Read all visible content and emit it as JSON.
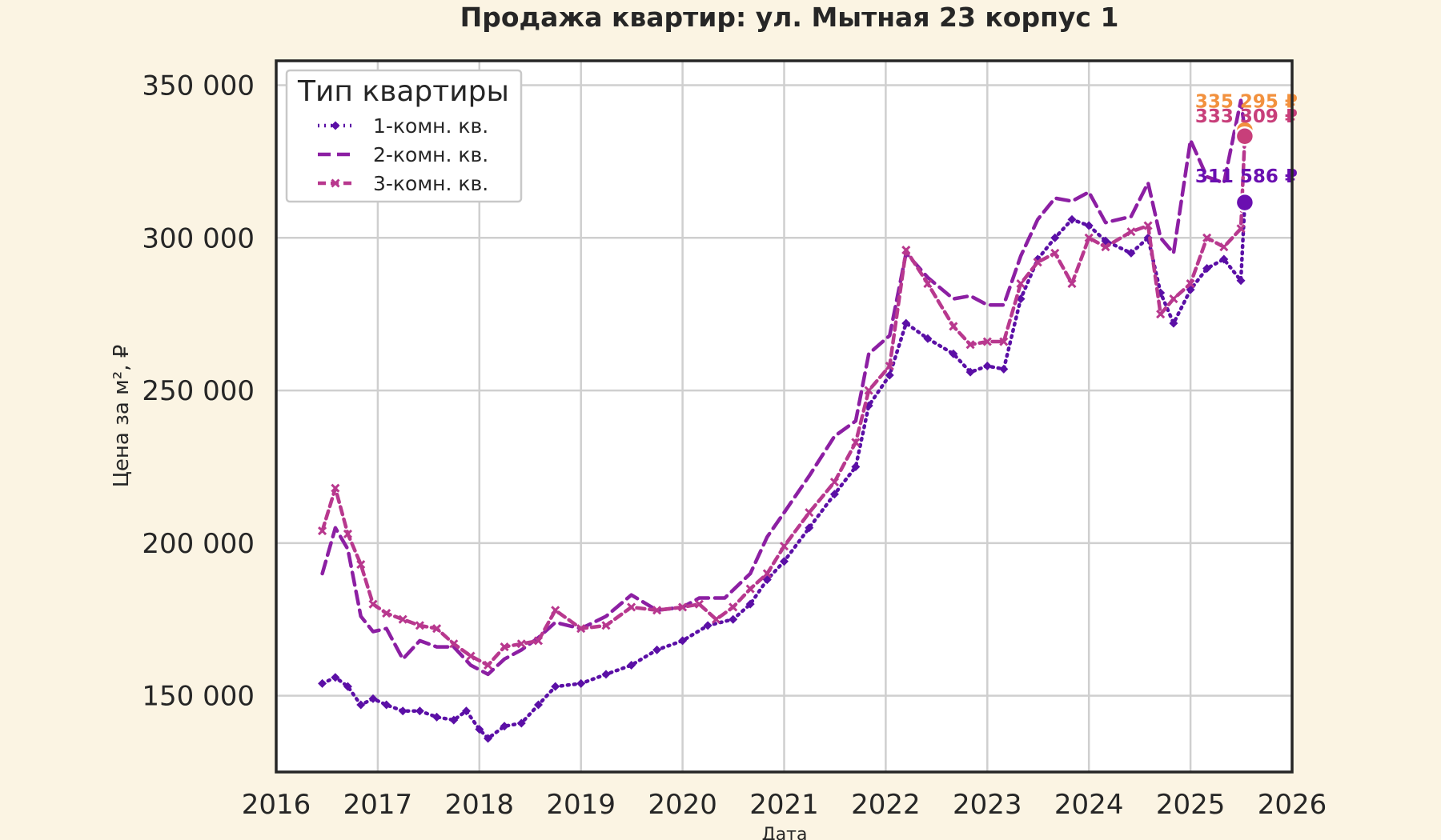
{
  "chart_data": {
    "type": "line",
    "title": "Продажа квартир: ул. Мытная 23 корпус 1",
    "xlabel": "Дата",
    "ylabel": "Цена за м², ₽",
    "xlim": [
      "2016-01-01",
      "2026-01-01"
    ],
    "ylim": [
      125000,
      358000
    ],
    "x_ticks": [
      "2016",
      "2017",
      "2018",
      "2019",
      "2020",
      "2021",
      "2022",
      "2023",
      "2024",
      "2025",
      "2026"
    ],
    "y_ticks": [
      150000,
      200000,
      250000,
      300000,
      350000
    ],
    "y_tick_labels": [
      "150 000",
      "200 000",
      "250 000",
      "300 000",
      "350 000"
    ],
    "grid": true,
    "legend": {
      "title": "Тип квартиры",
      "placement": "top-left"
    },
    "series": [
      {
        "name": "1-комн. кв.",
        "color": "#5b0fa6",
        "style": "dotted-diamond",
        "points": [
          [
            "2016-06-15",
            154000
          ],
          [
            "2016-08-01",
            156000
          ],
          [
            "2016-09-15",
            153000
          ],
          [
            "2016-11-01",
            147000
          ],
          [
            "2016-12-15",
            149000
          ],
          [
            "2017-02-01",
            147000
          ],
          [
            "2017-04-01",
            145000
          ],
          [
            "2017-06-01",
            145000
          ],
          [
            "2017-08-01",
            143000
          ],
          [
            "2017-10-01",
            142000
          ],
          [
            "2017-11-15",
            145000
          ],
          [
            "2018-01-01",
            139000
          ],
          [
            "2018-02-01",
            136000
          ],
          [
            "2018-04-01",
            140000
          ],
          [
            "2018-06-01",
            141000
          ],
          [
            "2018-08-01",
            147000
          ],
          [
            "2018-10-01",
            153000
          ],
          [
            "2019-01-01",
            154000
          ],
          [
            "2019-04-01",
            157000
          ],
          [
            "2019-07-01",
            160000
          ],
          [
            "2019-10-01",
            165000
          ],
          [
            "2020-01-01",
            168000
          ],
          [
            "2020-04-01",
            173000
          ],
          [
            "2020-07-01",
            175000
          ],
          [
            "2020-09-01",
            180000
          ],
          [
            "2020-11-01",
            188000
          ],
          [
            "2021-01-01",
            194000
          ],
          [
            "2021-04-01",
            205000
          ],
          [
            "2021-07-01",
            216000
          ],
          [
            "2021-09-15",
            225000
          ],
          [
            "2021-11-01",
            245000
          ],
          [
            "2022-01-15",
            255000
          ],
          [
            "2022-03-15",
            272000
          ],
          [
            "2022-06-01",
            267000
          ],
          [
            "2022-09-01",
            262000
          ],
          [
            "2022-11-01",
            256000
          ],
          [
            "2023-01-01",
            258000
          ],
          [
            "2023-03-01",
            257000
          ],
          [
            "2023-05-01",
            280000
          ],
          [
            "2023-07-01",
            293000
          ],
          [
            "2023-09-01",
            300000
          ],
          [
            "2023-11-01",
            306000
          ],
          [
            "2024-01-01",
            304000
          ],
          [
            "2024-03-01",
            299000
          ],
          [
            "2024-06-01",
            295000
          ],
          [
            "2024-08-01",
            300000
          ],
          [
            "2024-09-15",
            282000
          ],
          [
            "2024-11-01",
            272000
          ],
          [
            "2025-01-01",
            283000
          ],
          [
            "2025-03-01",
            290000
          ],
          [
            "2025-05-01",
            293000
          ],
          [
            "2025-07-01",
            286000
          ],
          [
            "2025-07-15",
            311586
          ]
        ]
      },
      {
        "name": "2-комн. кв.",
        "color": "#8c1fa3",
        "style": "dashed",
        "points": [
          [
            "2016-06-15",
            190000
          ],
          [
            "2016-08-01",
            205000
          ],
          [
            "2016-09-15",
            198000
          ],
          [
            "2016-11-01",
            176000
          ],
          [
            "2016-12-15",
            171000
          ],
          [
            "2017-02-01",
            172000
          ],
          [
            "2017-04-01",
            162000
          ],
          [
            "2017-06-01",
            168000
          ],
          [
            "2017-08-01",
            166000
          ],
          [
            "2017-10-01",
            166000
          ],
          [
            "2017-12-01",
            160000
          ],
          [
            "2018-02-01",
            157000
          ],
          [
            "2018-04-01",
            162000
          ],
          [
            "2018-06-01",
            165000
          ],
          [
            "2018-08-01",
            169000
          ],
          [
            "2018-10-01",
            174000
          ],
          [
            "2019-01-01",
            172000
          ],
          [
            "2019-04-01",
            176000
          ],
          [
            "2019-07-01",
            183000
          ],
          [
            "2019-10-01",
            178000
          ],
          [
            "2020-01-01",
            179000
          ],
          [
            "2020-03-01",
            182000
          ],
          [
            "2020-06-01",
            182000
          ],
          [
            "2020-09-01",
            190000
          ],
          [
            "2020-11-01",
            202000
          ],
          [
            "2021-01-01",
            210000
          ],
          [
            "2021-04-01",
            222000
          ],
          [
            "2021-07-01",
            235000
          ],
          [
            "2021-09-15",
            240000
          ],
          [
            "2021-11-01",
            262000
          ],
          [
            "2022-01-15",
            268000
          ],
          [
            "2022-03-15",
            295000
          ],
          [
            "2022-06-01",
            287000
          ],
          [
            "2022-09-01",
            280000
          ],
          [
            "2022-11-01",
            281000
          ],
          [
            "2023-01-01",
            278000
          ],
          [
            "2023-03-01",
            278000
          ],
          [
            "2023-05-01",
            294000
          ],
          [
            "2023-07-01",
            306000
          ],
          [
            "2023-09-01",
            313000
          ],
          [
            "2023-11-01",
            312000
          ],
          [
            "2024-01-01",
            315000
          ],
          [
            "2024-03-01",
            305000
          ],
          [
            "2024-06-01",
            307000
          ],
          [
            "2024-08-01",
            318000
          ],
          [
            "2024-09-15",
            300000
          ],
          [
            "2024-11-01",
            295000
          ],
          [
            "2025-01-01",
            332000
          ],
          [
            "2025-03-01",
            320000
          ],
          [
            "2025-05-01",
            318000
          ],
          [
            "2025-07-01",
            345000
          ],
          [
            "2025-07-15",
            335295
          ]
        ]
      },
      {
        "name": "3-комн. кв.",
        "color": "#b8388e",
        "style": "dashed-x",
        "points": [
          [
            "2016-06-15",
            204000
          ],
          [
            "2016-08-01",
            218000
          ],
          [
            "2016-09-15",
            203000
          ],
          [
            "2016-11-01",
            193000
          ],
          [
            "2016-12-15",
            180000
          ],
          [
            "2017-02-01",
            177000
          ],
          [
            "2017-04-01",
            175000
          ],
          [
            "2017-06-01",
            173000
          ],
          [
            "2017-08-01",
            172000
          ],
          [
            "2017-10-01",
            167000
          ],
          [
            "2017-12-01",
            163000
          ],
          [
            "2018-02-01",
            160000
          ],
          [
            "2018-04-01",
            166000
          ],
          [
            "2018-06-01",
            167000
          ],
          [
            "2018-08-01",
            168000
          ],
          [
            "2018-10-01",
            178000
          ],
          [
            "2019-01-01",
            172000
          ],
          [
            "2019-04-01",
            173000
          ],
          [
            "2019-07-01",
            179000
          ],
          [
            "2019-10-01",
            178000
          ],
          [
            "2020-01-01",
            179000
          ],
          [
            "2020-03-01",
            180000
          ],
          [
            "2020-05-01",
            175000
          ],
          [
            "2020-07-01",
            179000
          ],
          [
            "2020-09-01",
            185000
          ],
          [
            "2020-11-01",
            190000
          ],
          [
            "2021-01-01",
            199000
          ],
          [
            "2021-04-01",
            210000
          ],
          [
            "2021-07-01",
            220000
          ],
          [
            "2021-09-15",
            233000
          ],
          [
            "2021-11-01",
            250000
          ],
          [
            "2022-01-15",
            258000
          ],
          [
            "2022-03-15",
            296000
          ],
          [
            "2022-06-01",
            285000
          ],
          [
            "2022-09-01",
            271000
          ],
          [
            "2022-11-01",
            265000
          ],
          [
            "2023-01-01",
            266000
          ],
          [
            "2023-03-01",
            266000
          ],
          [
            "2023-05-01",
            285000
          ],
          [
            "2023-07-01",
            292000
          ],
          [
            "2023-09-01",
            295000
          ],
          [
            "2023-11-01",
            285000
          ],
          [
            "2024-01-01",
            300000
          ],
          [
            "2024-03-01",
            297000
          ],
          [
            "2024-06-01",
            302000
          ],
          [
            "2024-08-01",
            304000
          ],
          [
            "2024-09-15",
            275000
          ],
          [
            "2024-11-01",
            280000
          ],
          [
            "2025-01-01",
            285000
          ],
          [
            "2025-03-01",
            300000
          ],
          [
            "2025-05-01",
            297000
          ],
          [
            "2025-07-01",
            303000
          ],
          [
            "2025-07-15",
            333309
          ]
        ]
      }
    ],
    "end_labels": [
      {
        "text": "335 295 ₽",
        "color": "#f2913e",
        "marker_color": "#f2913e",
        "x": "2025-07-15",
        "value": 335295
      },
      {
        "text": "333 309 ₽",
        "color": "#c83f7a",
        "marker_color": "#c83f7a",
        "x": "2025-07-15",
        "value": 333309
      },
      {
        "text": "311 586 ₽",
        "color": "#6a0fb0",
        "marker_color": "#6a0fb0",
        "x": "2025-07-15",
        "value": 311586
      }
    ]
  }
}
